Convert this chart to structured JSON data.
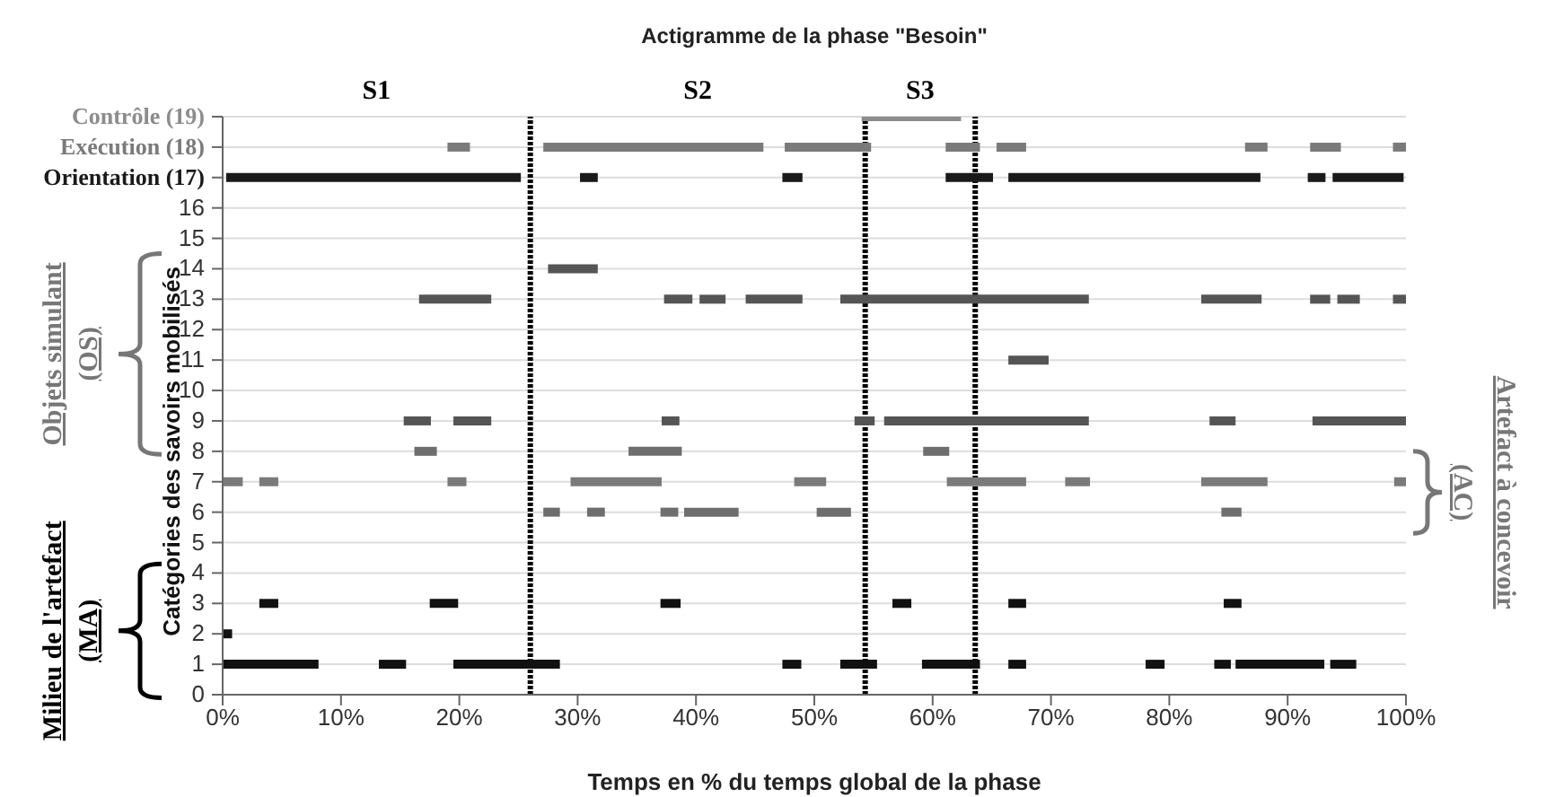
{
  "chart_data": {
    "type": "line",
    "title": "Actigramme de la phase \"Besoin\"",
    "xlabel": "Temps en % du temps global de la phase",
    "ylabel": "Catégories des savoirs mobilisés",
    "xlim": [
      0,
      100
    ],
    "xticks": [
      {
        "value": 0,
        "label": "0%"
      },
      {
        "value": 10,
        "label": "10%"
      },
      {
        "value": 20,
        "label": "20%"
      },
      {
        "value": 30,
        "label": "30%"
      },
      {
        "value": 40,
        "label": "40%"
      },
      {
        "value": 50,
        "label": "50%"
      },
      {
        "value": 60,
        "label": "60%"
      },
      {
        "value": 70,
        "label": "70%"
      },
      {
        "value": 80,
        "label": "80%"
      },
      {
        "value": 90,
        "label": "90%"
      },
      {
        "value": 100,
        "label": "100%"
      }
    ],
    "ylim": [
      0,
      19
    ],
    "yticks": [
      0,
      1,
      2,
      3,
      4,
      5,
      6,
      7,
      8,
      9,
      10,
      11,
      12,
      13,
      14,
      15,
      16,
      {
        "value": 17,
        "label": "Orientation (17)"
      },
      {
        "value": 18,
        "label": "Exécution (18)"
      },
      {
        "value": 19,
        "label": "Contrôle (19)"
      }
    ],
    "grid": "y",
    "marker": "none",
    "line_style": "solid",
    "series": [
      {
        "color": "#8c8c8c",
        "x": [
          54,
          62.4
        ],
        "values": [
          19,
          19
        ]
      },
      {
        "color": "#7a7a7a",
        "x": [
          19,
          20.9
        ],
        "values": [
          18,
          18
        ]
      },
      {
        "color": "#7a7a7a",
        "x": [
          27.1,
          45.7
        ],
        "values": [
          18,
          18
        ]
      },
      {
        "color": "#7a7a7a",
        "x": [
          47.5,
          54.8
        ],
        "values": [
          18,
          18
        ]
      },
      {
        "color": "#7a7a7a",
        "x": [
          61.1,
          64
        ],
        "values": [
          18,
          18
        ]
      },
      {
        "color": "#7a7a7a",
        "x": [
          65.4,
          67.9
        ],
        "values": [
          18,
          18
        ]
      },
      {
        "color": "#7a7a7a",
        "x": [
          86.4,
          88.3
        ],
        "values": [
          18,
          18
        ]
      },
      {
        "color": "#7a7a7a",
        "x": [
          91.9,
          94.5
        ],
        "values": [
          18,
          18
        ]
      },
      {
        "color": "#7a7a7a",
        "x": [
          98.9,
          100
        ],
        "values": [
          18,
          18
        ]
      },
      {
        "color": "#1a1a1a",
        "x": [
          0.3,
          25.2
        ],
        "values": [
          17,
          17
        ]
      },
      {
        "color": "#1a1a1a",
        "x": [
          30.2,
          31.7
        ],
        "values": [
          17,
          17
        ]
      },
      {
        "color": "#1a1a1a",
        "x": [
          47.3,
          49
        ],
        "values": [
          17,
          17
        ]
      },
      {
        "color": "#1a1a1a",
        "x": [
          61.1,
          65.1
        ],
        "values": [
          17,
          17
        ]
      },
      {
        "color": "#1a1a1a",
        "x": [
          66.4,
          87.7
        ],
        "values": [
          17,
          17
        ]
      },
      {
        "color": "#1a1a1a",
        "x": [
          91.7,
          93.2
        ],
        "values": [
          17,
          17
        ]
      },
      {
        "color": "#1a1a1a",
        "x": [
          93.8,
          99.8
        ],
        "values": [
          17,
          17
        ]
      },
      {
        "color": "#555555",
        "x": [
          27.5,
          31.7
        ],
        "values": [
          14,
          14
        ]
      },
      {
        "color": "#555555",
        "x": [
          16.6,
          22.7
        ],
        "values": [
          13,
          13
        ]
      },
      {
        "color": "#555555",
        "x": [
          37.3,
          39.7
        ],
        "values": [
          13,
          13
        ]
      },
      {
        "color": "#555555",
        "x": [
          40.3,
          42.5
        ],
        "values": [
          13,
          13
        ]
      },
      {
        "color": "#555555",
        "x": [
          44.2,
          49
        ],
        "values": [
          13,
          13
        ]
      },
      {
        "color": "#555555",
        "x": [
          52.2,
          73.2
        ],
        "values": [
          13,
          13
        ]
      },
      {
        "color": "#555555",
        "x": [
          82.7,
          87.8
        ],
        "values": [
          13,
          13
        ]
      },
      {
        "color": "#555555",
        "x": [
          91.9,
          93.6
        ],
        "values": [
          13,
          13
        ]
      },
      {
        "color": "#555555",
        "x": [
          94.2,
          96.1
        ],
        "values": [
          13,
          13
        ]
      },
      {
        "color": "#555555",
        "x": [
          98.9,
          100
        ],
        "values": [
          13,
          13
        ]
      },
      {
        "color": "#555555",
        "x": [
          66.4,
          69.8
        ],
        "values": [
          11,
          11
        ]
      },
      {
        "color": "#555555",
        "x": [
          15.3,
          17.6
        ],
        "values": [
          9,
          9
        ]
      },
      {
        "color": "#555555",
        "x": [
          19.5,
          22.7
        ],
        "values": [
          9,
          9
        ]
      },
      {
        "color": "#555555",
        "x": [
          37.1,
          38.6
        ],
        "values": [
          9,
          9
        ]
      },
      {
        "color": "#555555",
        "x": [
          53.4,
          55.1
        ],
        "values": [
          9,
          9
        ]
      },
      {
        "color": "#555555",
        "x": [
          55.9,
          73.2
        ],
        "values": [
          9,
          9
        ]
      },
      {
        "color": "#555555",
        "x": [
          83.4,
          85.6
        ],
        "values": [
          9,
          9
        ]
      },
      {
        "color": "#555555",
        "x": [
          92.1,
          100
        ],
        "values": [
          9,
          9
        ]
      },
      {
        "color": "#6e6e6e",
        "x": [
          16.2,
          18.1
        ],
        "values": [
          8,
          8
        ]
      },
      {
        "color": "#6e6e6e",
        "x": [
          34.3,
          38.8
        ],
        "values": [
          8,
          8
        ]
      },
      {
        "color": "#6e6e6e",
        "x": [
          59.2,
          61.4
        ],
        "values": [
          8,
          8
        ]
      },
      {
        "color": "#7a7a7a",
        "x": [
          0,
          1.7
        ],
        "values": [
          7,
          7
        ]
      },
      {
        "color": "#7a7a7a",
        "x": [
          3.1,
          4.7
        ],
        "values": [
          7,
          7
        ]
      },
      {
        "color": "#7a7a7a",
        "x": [
          19,
          20.6
        ],
        "values": [
          7,
          7
        ]
      },
      {
        "color": "#7a7a7a",
        "x": [
          29.4,
          37.1
        ],
        "values": [
          7,
          7
        ]
      },
      {
        "color": "#7a7a7a",
        "x": [
          48.3,
          51
        ],
        "values": [
          7,
          7
        ]
      },
      {
        "color": "#7a7a7a",
        "x": [
          61.2,
          67.9
        ],
        "values": [
          7,
          7
        ]
      },
      {
        "color": "#7a7a7a",
        "x": [
          71.2,
          73.3
        ],
        "values": [
          7,
          7
        ]
      },
      {
        "color": "#7a7a7a",
        "x": [
          82.7,
          88.3
        ],
        "values": [
          7,
          7
        ]
      },
      {
        "color": "#7a7a7a",
        "x": [
          99,
          100
        ],
        "values": [
          7,
          7
        ]
      },
      {
        "color": "#6e6e6e",
        "x": [
          27.1,
          28.5
        ],
        "values": [
          6,
          6
        ]
      },
      {
        "color": "#6e6e6e",
        "x": [
          30.8,
          32.3
        ],
        "values": [
          6,
          6
        ]
      },
      {
        "color": "#6e6e6e",
        "x": [
          37,
          38.5
        ],
        "values": [
          6,
          6
        ]
      },
      {
        "color": "#6e6e6e",
        "x": [
          39,
          43.6
        ],
        "values": [
          6,
          6
        ]
      },
      {
        "color": "#6e6e6e",
        "x": [
          50.2,
          53.1
        ],
        "values": [
          6,
          6
        ]
      },
      {
        "color": "#6e6e6e",
        "x": [
          84.4,
          86.1
        ],
        "values": [
          6,
          6
        ]
      },
      {
        "color": "#111111",
        "x": [
          3.1,
          4.7
        ],
        "values": [
          3,
          3
        ]
      },
      {
        "color": "#111111",
        "x": [
          17.5,
          19.9
        ],
        "values": [
          3,
          3
        ]
      },
      {
        "color": "#111111",
        "x": [
          37,
          38.7
        ],
        "values": [
          3,
          3
        ]
      },
      {
        "color": "#111111",
        "x": [
          56.6,
          58.2
        ],
        "values": [
          3,
          3
        ]
      },
      {
        "color": "#111111",
        "x": [
          66.4,
          67.9
        ],
        "values": [
          3,
          3
        ]
      },
      {
        "color": "#111111",
        "x": [
          84.6,
          86.1
        ],
        "values": [
          3,
          3
        ]
      },
      {
        "color": "#111111",
        "x": [
          0,
          0.8
        ],
        "values": [
          2,
          2
        ]
      },
      {
        "color": "#111111",
        "x": [
          0,
          8.1
        ],
        "values": [
          1,
          1
        ]
      },
      {
        "color": "#111111",
        "x": [
          13.2,
          15.5
        ],
        "values": [
          1,
          1
        ]
      },
      {
        "color": "#111111",
        "x": [
          19.5,
          28.5
        ],
        "values": [
          1,
          1
        ]
      },
      {
        "color": "#111111",
        "x": [
          47.3,
          48.9
        ],
        "values": [
          1,
          1
        ]
      },
      {
        "color": "#111111",
        "x": [
          52.2,
          55.3
        ],
        "values": [
          1,
          1
        ]
      },
      {
        "color": "#111111",
        "x": [
          59.1,
          64
        ],
        "values": [
          1,
          1
        ]
      },
      {
        "color": "#111111",
        "x": [
          66.4,
          67.9
        ],
        "values": [
          1,
          1
        ]
      },
      {
        "color": "#111111",
        "x": [
          78,
          79.6
        ],
        "values": [
          1,
          1
        ]
      },
      {
        "color": "#111111",
        "x": [
          83.8,
          85.2
        ],
        "values": [
          1,
          1
        ]
      },
      {
        "color": "#111111",
        "x": [
          85.6,
          93.1
        ],
        "values": [
          1,
          1
        ]
      },
      {
        "color": "#111111",
        "x": [
          93.6,
          95.8
        ],
        "values": [
          1,
          1
        ]
      }
    ],
    "ref_lines": [
      {
        "axis": "x",
        "value": 26,
        "color": "#000000",
        "line_style": "dotted"
      },
      {
        "axis": "x",
        "value": 54.3,
        "color": "#000000",
        "line_style": "dotted"
      },
      {
        "axis": "x",
        "value": 63.6,
        "color": "#000000",
        "line_style": "dotted"
      }
    ],
    "annotations": [
      "S1",
      "S2",
      "S3",
      "Objets simulant (OS)",
      "Milieu de l'artefact (MA)",
      "Artefact à concevoir (AC)"
    ]
  }
}
